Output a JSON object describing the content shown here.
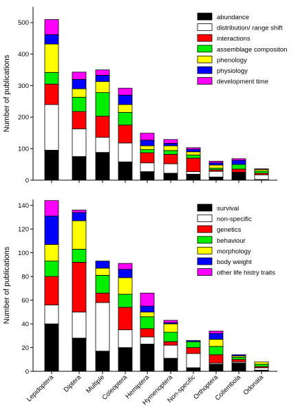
{
  "chart_data": [
    {
      "type": "bar",
      "stacked": true,
      "title": "",
      "xlabel": "",
      "ylabel": "Number of publications",
      "ylim": [
        0,
        550
      ],
      "yticks": [
        0,
        100,
        200,
        300,
        400,
        500
      ],
      "legend_position": "top-right",
      "categories": [
        "Lepidoptera",
        "Diptera",
        "Multiple",
        "Coleoptera",
        "Hemiptera",
        "Hymenoptera",
        "Non-specific",
        "Orthoptera",
        "Collembola",
        "Odonata"
      ],
      "series": [
        {
          "name": "abundance",
          "color": "#000000",
          "values": [
            95,
            75,
            88,
            58,
            27,
            22,
            19,
            10,
            25,
            2
          ]
        },
        {
          "name": "distribution/ range shift",
          "color": "#ffffff",
          "values": [
            145,
            88,
            48,
            60,
            28,
            30,
            8,
            18,
            0,
            15
          ]
        },
        {
          "name": "interactions",
          "color": "#ff0000",
          "values": [
            65,
            55,
            67,
            57,
            32,
            30,
            43,
            5,
            10,
            5
          ]
        },
        {
          "name": "assemblage compositon",
          "color": "#00ee00",
          "values": [
            37,
            45,
            75,
            40,
            10,
            12,
            10,
            5,
            15,
            7
          ]
        },
        {
          "name": "phenology",
          "color": "#ffff00",
          "values": [
            90,
            27,
            35,
            25,
            12,
            15,
            10,
            10,
            0,
            5
          ]
        },
        {
          "name": "physiology",
          "color": "#0000ff",
          "values": [
            30,
            30,
            20,
            30,
            18,
            8,
            8,
            7,
            13,
            0
          ]
        },
        {
          "name": "development time",
          "color": "#ff00ff",
          "values": [
            48,
            23,
            17,
            22,
            22,
            12,
            5,
            5,
            5,
            2
          ]
        }
      ]
    },
    {
      "type": "bar",
      "stacked": true,
      "title": "",
      "xlabel": "",
      "ylabel": "Number of publications",
      "ylim": [
        0,
        145
      ],
      "yticks": [
        0,
        20,
        40,
        60,
        80,
        100,
        120,
        140
      ],
      "legend_position": "top-right",
      "categories": [
        "Lepidoptera",
        "Diptera",
        "Multiple",
        "Coleoptera",
        "Hemiptera",
        "Hymenoptera",
        "Non-specific",
        "Orthoptera",
        "Collembola",
        "Odonata"
      ],
      "series": [
        {
          "name": "survival",
          "color": "#000000",
          "values": [
            40,
            28,
            17,
            20,
            23,
            11,
            3,
            6,
            7,
            1
          ]
        },
        {
          "name": "non-specific",
          "color": "#ffffff",
          "values": [
            16,
            22,
            41,
            15,
            6,
            11,
            12,
            1,
            1,
            2
          ]
        },
        {
          "name": "genetics",
          "color": "#ff0000",
          "values": [
            24,
            42,
            8,
            19,
            7,
            3,
            5,
            7,
            2,
            1
          ]
        },
        {
          "name": "behaviour",
          "color": "#00ee00",
          "values": [
            13,
            11,
            15,
            11,
            10,
            8,
            5,
            7,
            2,
            2
          ]
        },
        {
          "name": "morphology",
          "color": "#ffff00",
          "values": [
            14,
            24,
            6,
            14,
            4,
            7,
            0,
            6,
            1,
            2
          ]
        },
        {
          "name": "body weight",
          "color": "#0000ff",
          "values": [
            24,
            7,
            6,
            7,
            5,
            1,
            1,
            5,
            1,
            0
          ]
        },
        {
          "name": "other life histry traits",
          "color": "#ff00ff",
          "values": [
            13,
            2,
            0,
            5,
            11,
            2,
            0,
            2,
            0,
            0
          ]
        }
      ]
    }
  ]
}
